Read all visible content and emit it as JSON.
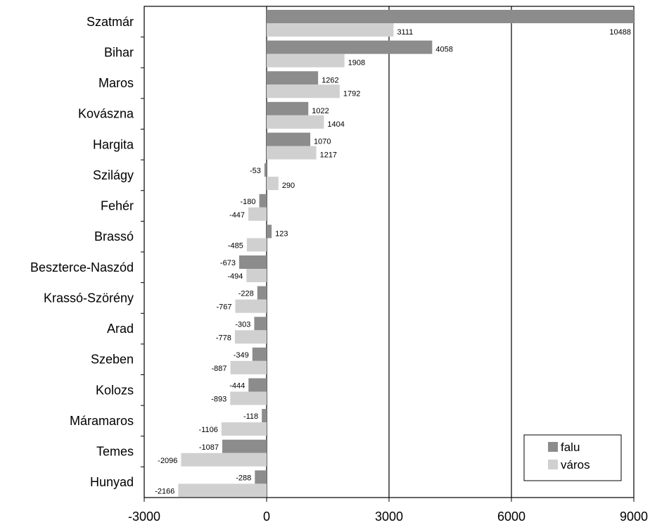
{
  "chart_data": {
    "type": "bar",
    "orientation": "horizontal",
    "categories": [
      "Szatmár",
      "Bihar",
      "Maros",
      "Kovászna",
      "Hargita",
      "Szilágy",
      "Fehér",
      "Brassó",
      "Beszterce-Naszód",
      "Krassó-Szörény",
      "Arad",
      "Szeben",
      "Kolozs",
      "Máramaros",
      "Temes",
      "Hunyad"
    ],
    "series": [
      {
        "name": "falu",
        "color": "#8c8c8c",
        "values": [
          10488,
          4058,
          1262,
          1022,
          1070,
          -53,
          -180,
          123,
          -673,
          -228,
          -303,
          -349,
          -444,
          -118,
          -1087,
          -288
        ]
      },
      {
        "name": "város",
        "color": "#d0d0d0",
        "values": [
          3111,
          1908,
          1792,
          1404,
          1217,
          290,
          -447,
          -485,
          -494,
          -767,
          -778,
          -887,
          -893,
          -1106,
          -2096,
          -2166
        ]
      }
    ],
    "data_labels": {
      "falu": [
        "10488",
        "4058",
        "1262",
        "1022",
        "1070",
        "-53",
        "-180",
        "123",
        "-673",
        "-228",
        "-303",
        "-349",
        "-444",
        "-118",
        "-1087",
        "-288"
      ],
      "város": [
        "3111",
        "1908",
        "1792",
        "1404",
        "1217",
        "290",
        "-447",
        "-485",
        "-494",
        "-767",
        "-778",
        "-887",
        "-893",
        "-1106",
        "-2096",
        "-2166"
      ]
    },
    "xlim": [
      -3000,
      9000
    ],
    "xticks": [
      -3000,
      0,
      3000,
      6000,
      9000
    ],
    "xtick_labels": [
      "-3000",
      "0",
      "3000",
      "6000",
      "9000"
    ],
    "gridlines": [
      0,
      3000,
      6000
    ],
    "legend": {
      "position": "bottom-right",
      "entries": [
        "falu",
        "város"
      ]
    },
    "title": "",
    "xlabel": "",
    "ylabel": ""
  }
}
